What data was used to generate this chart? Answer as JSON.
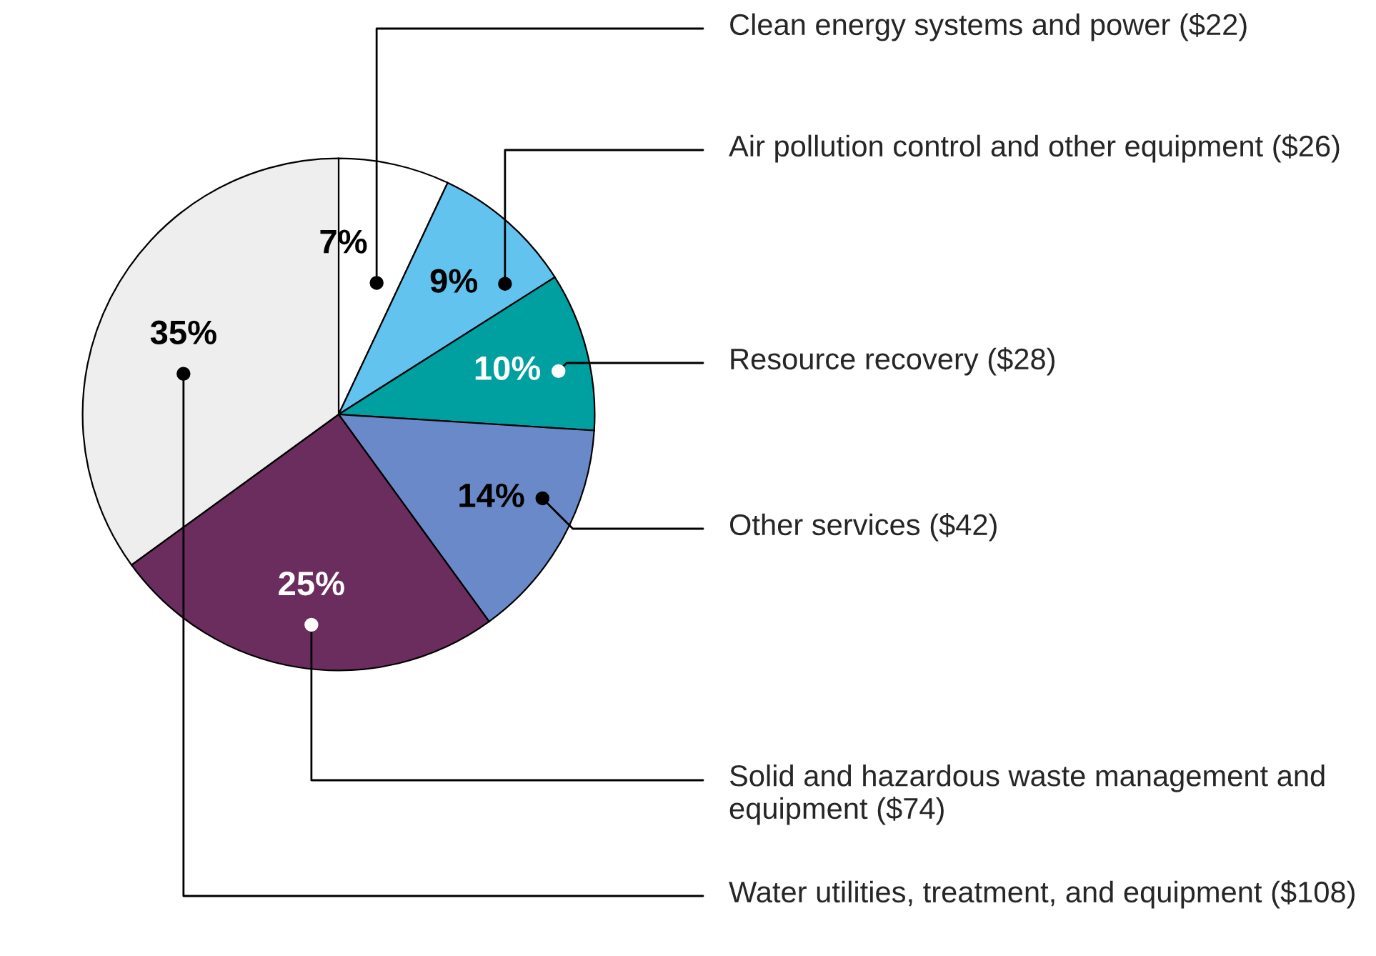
{
  "chart_data": {
    "type": "pie",
    "categories": [
      "Clean energy systems and power ($22)",
      "Air pollution control and other equipment ($26)",
      "Resource recovery ($28)",
      "Other services ($42)",
      "Solid and hazardous waste management and equipment ($74)",
      "Water utilities, treatment, and equipment ($108)"
    ],
    "values": [
      7,
      9,
      10,
      14,
      25,
      35
    ],
    "value_labels": [
      "7%",
      "9%",
      "10%",
      "14%",
      "25%",
      "35%"
    ],
    "colors": [
      "#ffffff",
      "#62c4ee",
      "#00a0a0",
      "#6a89c8",
      "#6b2c5e",
      "#eeeeee"
    ]
  }
}
